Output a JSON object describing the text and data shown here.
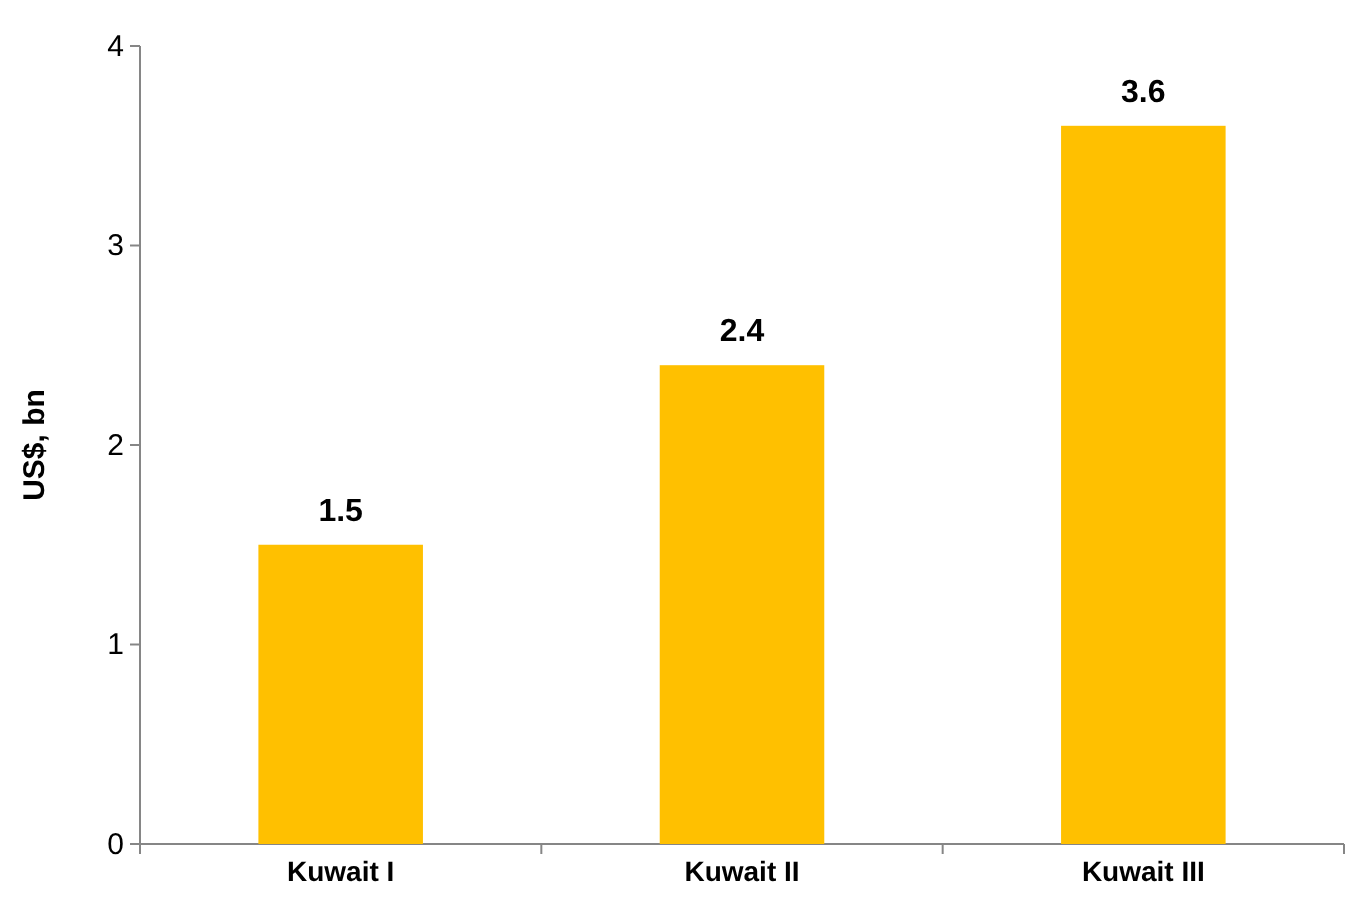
{
  "chart_data": {
    "type": "bar",
    "ylabel": "US$, bn",
    "categories": [
      "Kuwait I",
      "Kuwait II",
      "Kuwait III"
    ],
    "values": [
      1.5,
      2.4,
      3.6
    ],
    "color": "#ffc000",
    "ylim": [
      0,
      4
    ],
    "yticks": [
      0,
      1,
      2,
      3,
      4
    ],
    "data_labels": true,
    "grid": false
  }
}
